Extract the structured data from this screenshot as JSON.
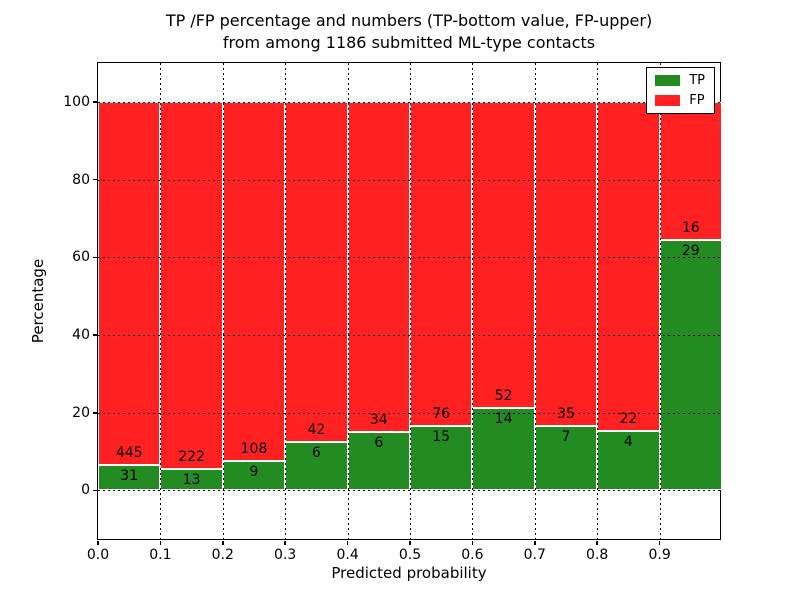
{
  "title": {
    "line1": "TP /FP percentage and numbers (TP-bottom value, FP-upper)",
    "line2": "from among 1186 submitted ML-type contacts"
  },
  "chart_data": {
    "type": "bar",
    "stacked": true,
    "normalized": "each bar sums to 100%",
    "total_contacts": 1186,
    "categories": [
      "0.0-0.1",
      "0.1-0.2",
      "0.2-0.3",
      "0.3-0.4",
      "0.4-0.5",
      "0.5-0.6",
      "0.6-0.7",
      "0.7-0.8",
      "0.8-0.9",
      "0.9-1.0"
    ],
    "series": [
      {
        "name": "TP",
        "color": "#228b22",
        "counts": [
          31,
          13,
          9,
          6,
          6,
          15,
          14,
          7,
          4,
          29
        ],
        "percent": [
          6.5,
          5.5,
          7.7,
          12.5,
          15.0,
          16.5,
          21.2,
          16.7,
          15.4,
          64.4
        ]
      },
      {
        "name": "FP",
        "color": "#ff2121",
        "counts": [
          445,
          222,
          108,
          42,
          34,
          76,
          52,
          35,
          22,
          16
        ],
        "percent": [
          93.5,
          94.5,
          92.3,
          87.5,
          85.0,
          83.5,
          78.8,
          83.3,
          84.6,
          35.6
        ]
      }
    ],
    "xlabel": "Predicted probability",
    "ylabel": "Percentage",
    "xticks": [
      0.0,
      0.1,
      0.2,
      0.3,
      0.4,
      0.5,
      0.6,
      0.7,
      0.8,
      0.9
    ],
    "yticks": [
      0,
      20,
      40,
      60,
      80,
      100
    ],
    "xlim": [
      0.0,
      1.0
    ],
    "ylim": [
      -13,
      110
    ],
    "grid": "dotted black, both axes, drawn over bars",
    "bar_edge_color": "#ffffff",
    "legend": {
      "position": "upper right",
      "entries": [
        {
          "label": "TP",
          "color": "#228b22"
        },
        {
          "label": "FP",
          "color": "#ff2121"
        }
      ]
    }
  }
}
